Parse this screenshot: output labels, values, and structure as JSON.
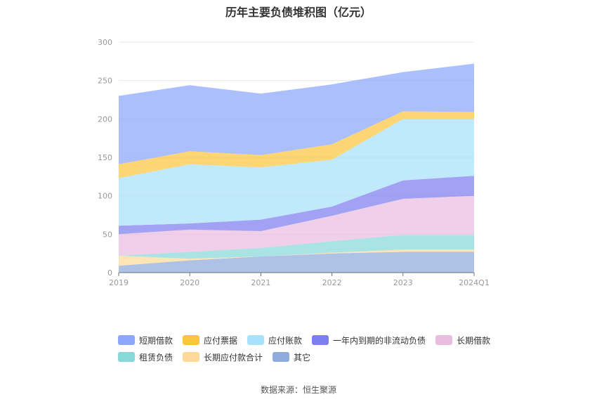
{
  "title": "历年主要负债堆积图（亿元）",
  "source": "数据来源：恒生聚源",
  "chart_data": {
    "type": "area",
    "stacked": true,
    "categories": [
      "2019",
      "2020",
      "2021",
      "2022",
      "2023",
      "2024Q1"
    ],
    "ylim": [
      0,
      300
    ],
    "yticks": [
      0,
      50,
      100,
      150,
      200,
      250,
      300
    ],
    "grid": true,
    "legend_position": "bottom",
    "series": [
      {
        "name": "其它",
        "color": "#8faadc",
        "values": [
          9,
          16,
          21,
          25,
          27,
          27
        ]
      },
      {
        "name": "长期应付款合计",
        "color": "#ffd99a",
        "values": [
          13,
          2,
          0,
          1,
          3,
          3
        ]
      },
      {
        "name": "租赁负债",
        "color": "#88d8d8",
        "values": [
          0,
          9,
          11,
          15,
          19,
          19
        ]
      },
      {
        "name": "长期借款",
        "color": "#e9bde0",
        "values": [
          28,
          29,
          22,
          33,
          47,
          51
        ]
      },
      {
        "name": "一年内到期的非流动负债",
        "color": "#7e7ef0",
        "values": [
          11,
          8,
          15,
          12,
          24,
          26
        ]
      },
      {
        "name": "应付账款",
        "color": "#a8e1fa",
        "values": [
          62,
          77,
          68,
          61,
          80,
          74
        ]
      },
      {
        "name": "应付票据",
        "color": "#fbc63e",
        "values": [
          18,
          17,
          16,
          20,
          10,
          9
        ]
      },
      {
        "name": "短期借款",
        "color": "#8ca6fc",
        "values": [
          89,
          86,
          80,
          78,
          51,
          63
        ]
      }
    ]
  },
  "legend": {
    "row1": [
      {
        "label": "短期借款",
        "color": "#8ca6fc"
      },
      {
        "label": "应付票据",
        "color": "#fbc63e"
      },
      {
        "label": "应付账款",
        "color": "#a8e1fa"
      },
      {
        "label": "一年内到期的非流动负债",
        "color": "#7e7ef0"
      },
      {
        "label": "长期借款",
        "color": "#e9bde0"
      }
    ],
    "row2": [
      {
        "label": "租赁负债",
        "color": "#88d8d8"
      },
      {
        "label": "长期应付款合计",
        "color": "#ffd99a"
      },
      {
        "label": "其它",
        "color": "#8faadc"
      }
    ]
  }
}
